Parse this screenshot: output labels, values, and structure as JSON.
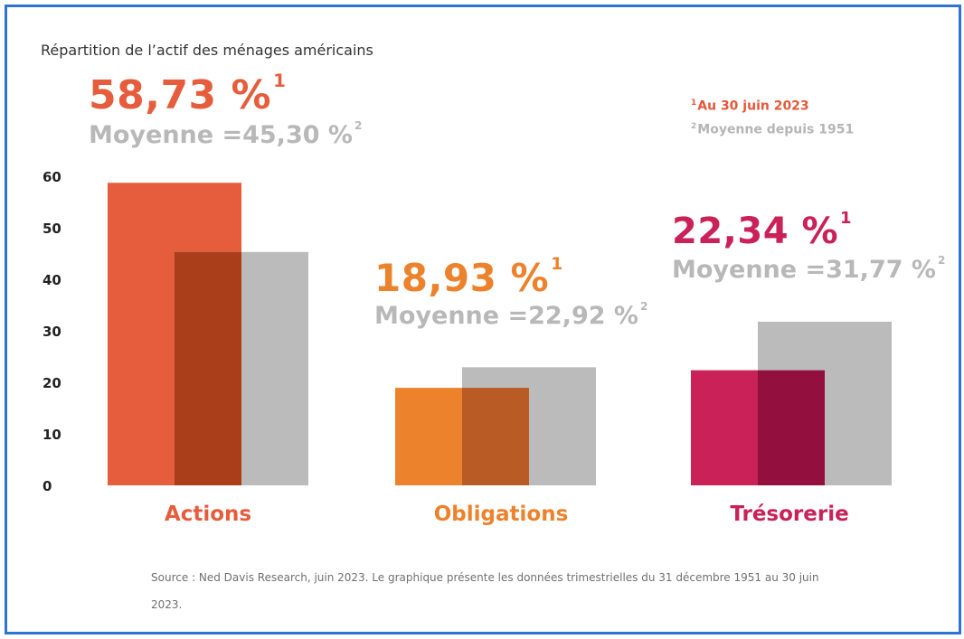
{
  "title": "Répartition de l’actif des ménages américains",
  "notes": {
    "note1_mark": "1",
    "note1_text": "Au 30 juin 2023",
    "note2_mark": "2",
    "note2_text": "Moyenne depuis 1951"
  },
  "colors": {
    "actions": "#e55d3c",
    "actions_overlap": "#aa3d1a",
    "obligations": "#ec822c",
    "obligations_overlap": "#b95b25",
    "tresorerie": "#c92158",
    "tresorerie_overlap": "#930f3e",
    "average": "#bbbbbb",
    "frame": "#2e74d2"
  },
  "chart_data": {
    "type": "bar",
    "categories": [
      "Actions",
      "Obligations",
      "Trésorerie"
    ],
    "series": [
      {
        "values": [
          58.73,
          18.93,
          22.34
        ]
      },
      {
        "values": [
          45.3,
          22.92,
          31.77
        ]
      }
    ],
    "ylim": [
      0,
      60
    ],
    "yticks": [
      "0",
      "10",
      "20",
      "30",
      "40",
      "50",
      "60"
    ],
    "grid": false,
    "annotations": [
      {
        "category": "Actions",
        "value_label": "58,73 %",
        "value_mark": "1",
        "avg_label": "Moyenne =45,30 %",
        "avg_mark": "2"
      },
      {
        "category": "Obligations",
        "value_label": "18,93 %",
        "value_mark": "1",
        "avg_label": "Moyenne =22,92 %",
        "avg_mark": "2"
      },
      {
        "category": "Trésorerie",
        "value_label": "22,34 %",
        "value_mark": "1",
        "avg_label": "Moyenne =31,77 %",
        "avg_mark": "2"
      }
    ]
  },
  "source": "Source : Ned Davis Research, juin 2023. Le graphique présente les données trimestrielles du 31 décembre 1951 au 30 juin 2023."
}
